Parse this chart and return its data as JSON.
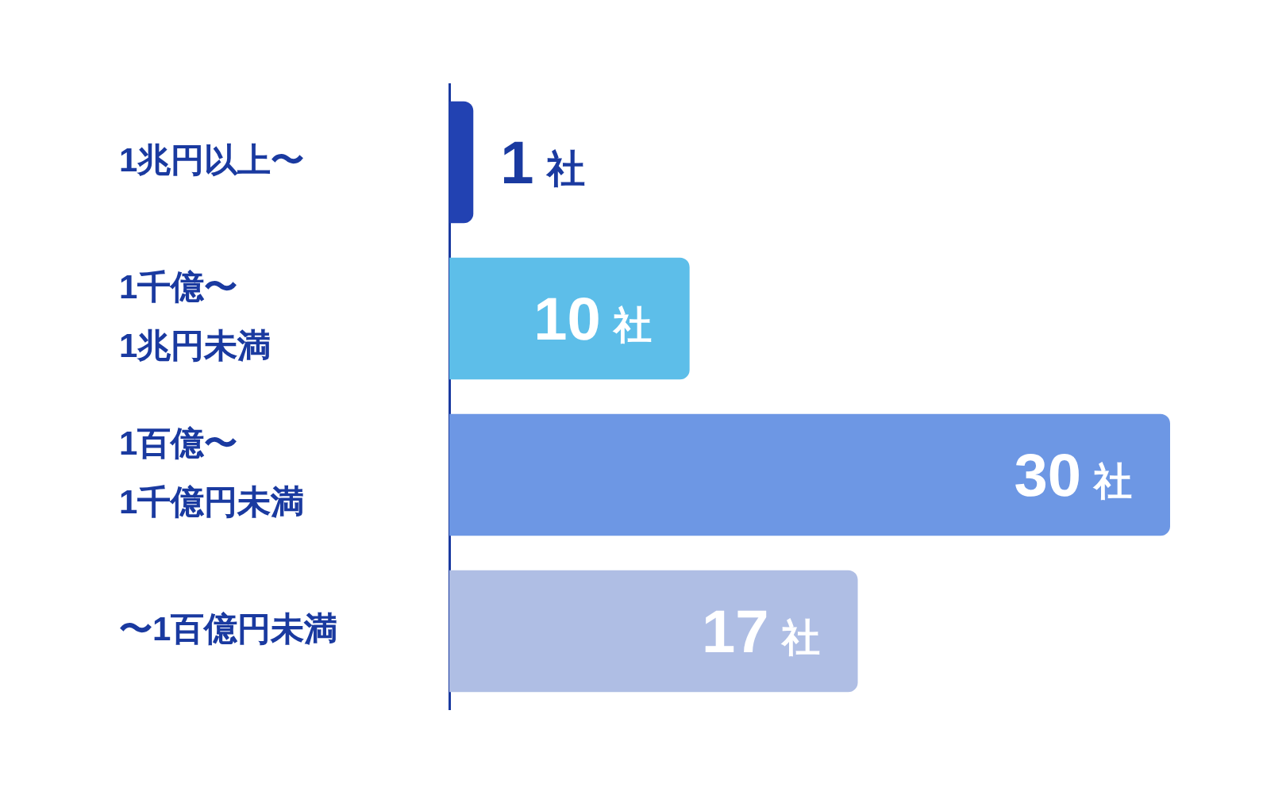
{
  "chart_data": {
    "type": "bar",
    "orientation": "horizontal",
    "categories": [
      "1兆円以上〜",
      "1千億〜\n1兆円未満",
      "1百億〜\n1千億円未満",
      "〜1百億円未満"
    ],
    "values": [
      1,
      10,
      30,
      17
    ],
    "colors": [
      "#2242b2",
      "#5dbee9",
      "#6d97e4",
      "#afbee4"
    ],
    "value_labels": [
      "1社",
      "10社",
      "30社",
      "17社"
    ],
    "xlim": [
      0,
      30
    ],
    "tick_labels": "y"
  }
}
